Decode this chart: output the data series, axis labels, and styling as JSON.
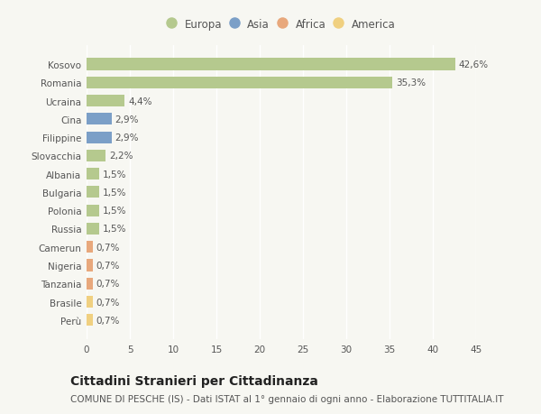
{
  "categories": [
    "Kosovo",
    "Romania",
    "Ucraina",
    "Cina",
    "Filippine",
    "Slovacchia",
    "Albania",
    "Bulgaria",
    "Polonia",
    "Russia",
    "Camerun",
    "Nigeria",
    "Tanzania",
    "Brasile",
    "Perù"
  ],
  "values": [
    42.6,
    35.3,
    4.4,
    2.9,
    2.9,
    2.2,
    1.5,
    1.5,
    1.5,
    1.5,
    0.7,
    0.7,
    0.7,
    0.7,
    0.7
  ],
  "labels": [
    "42,6%",
    "35,3%",
    "4,4%",
    "2,9%",
    "2,9%",
    "2,2%",
    "1,5%",
    "1,5%",
    "1,5%",
    "1,5%",
    "0,7%",
    "0,7%",
    "0,7%",
    "0,7%",
    "0,7%"
  ],
  "continent": [
    "Europa",
    "Europa",
    "Europa",
    "Asia",
    "Asia",
    "Europa",
    "Europa",
    "Europa",
    "Europa",
    "Europa",
    "Africa",
    "Africa",
    "Africa",
    "America",
    "America"
  ],
  "colors": {
    "Europa": "#b5c98e",
    "Asia": "#7b9fc7",
    "Africa": "#e8a87c",
    "America": "#f0d080"
  },
  "xlim": [
    0,
    45
  ],
  "xticks": [
    0,
    5,
    10,
    15,
    20,
    25,
    30,
    35,
    40,
    45
  ],
  "title": "Cittadini Stranieri per Cittadinanza",
  "subtitle": "COMUNE DI PESCHE (IS) - Dati ISTAT al 1° gennaio di ogni anno - Elaborazione TUTTITALIA.IT",
  "background_color": "#f7f7f2",
  "bar_height": 0.65,
  "grid_color": "#ffffff",
  "text_color": "#555555",
  "title_fontsize": 10,
  "subtitle_fontsize": 7.5,
  "tick_fontsize": 7.5,
  "label_fontsize": 7.5,
  "legend_fontsize": 8.5
}
